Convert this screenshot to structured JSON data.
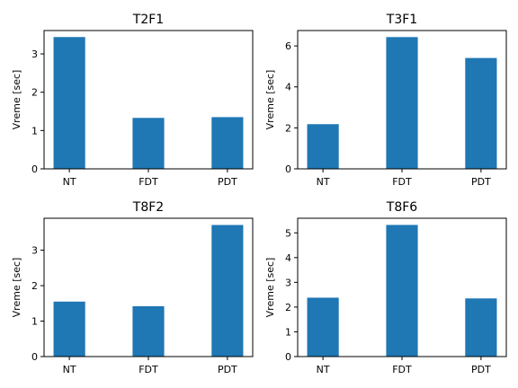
{
  "chart_data": [
    {
      "type": "bar",
      "title": "T2F1",
      "xlabel": "",
      "ylabel": "Vreme [sec]",
      "categories": [
        "NT",
        "FDT",
        "PDT"
      ],
      "values": [
        3.44,
        1.33,
        1.35
      ],
      "ylim": [
        0,
        3.61
      ],
      "yticks": [
        0,
        1,
        2,
        3
      ],
      "bar_color": "#1f77b4"
    },
    {
      "type": "bar",
      "title": "T3F1",
      "xlabel": "",
      "ylabel": "Vreme [sec]",
      "categories": [
        "NT",
        "FDT",
        "PDT"
      ],
      "values": [
        2.18,
        6.43,
        5.41
      ],
      "ylim": [
        0,
        6.75
      ],
      "yticks": [
        0,
        2,
        4,
        6
      ],
      "bar_color": "#1f77b4"
    },
    {
      "type": "bar",
      "title": "T8F2",
      "xlabel": "",
      "ylabel": "Vreme [sec]",
      "categories": [
        "NT",
        "FDT",
        "PDT"
      ],
      "values": [
        1.55,
        1.42,
        3.71
      ],
      "ylim": [
        0,
        3.9
      ],
      "yticks": [
        0,
        1,
        2,
        3
      ],
      "bar_color": "#1f77b4"
    },
    {
      "type": "bar",
      "title": "T8F6",
      "xlabel": "",
      "ylabel": "Vreme [sec]",
      "categories": [
        "NT",
        "FDT",
        "PDT"
      ],
      "values": [
        2.38,
        5.32,
        2.35
      ],
      "ylim": [
        0,
        5.59
      ],
      "yticks": [
        0,
        1,
        2,
        3,
        4,
        5
      ],
      "bar_color": "#1f77b4"
    }
  ]
}
